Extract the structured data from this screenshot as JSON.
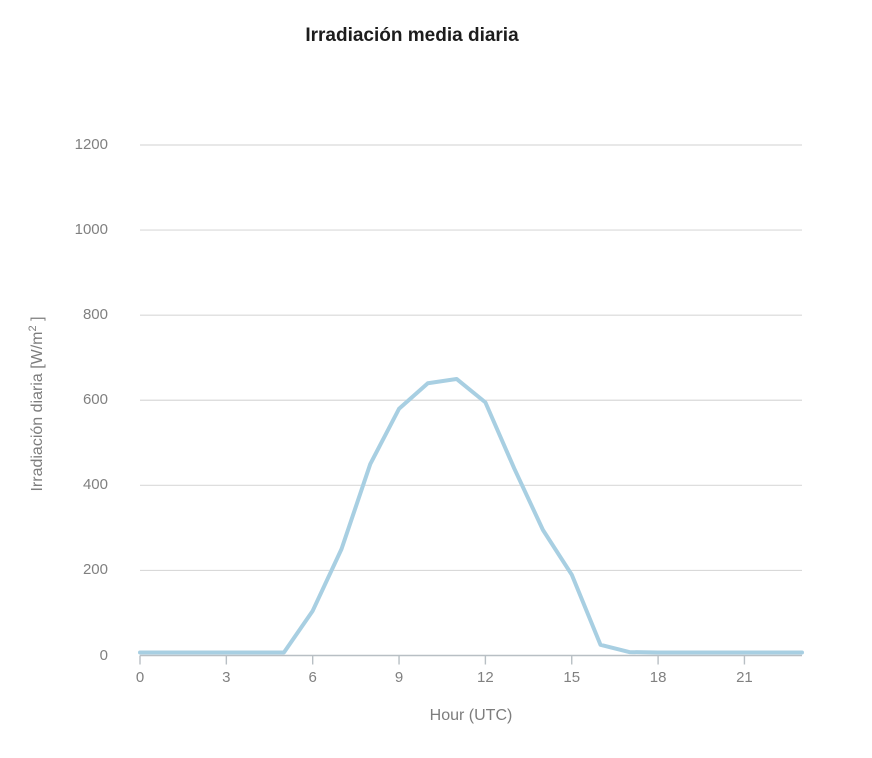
{
  "chart_data": {
    "type": "line",
    "title": "Irradiación media diaria",
    "xlabel": "Hour (UTC)",
    "ylabel": "Irradiación diaria [W/m ² ]",
    "ylabel_parts": {
      "prefix": "Irradiación diaria [W/m",
      "sup": "2",
      "suffix": " ]"
    },
    "x": [
      0,
      1,
      2,
      3,
      4,
      5,
      6,
      7,
      8,
      9,
      10,
      11,
      12,
      13,
      14,
      15,
      16,
      17,
      18,
      19,
      20,
      21,
      22,
      23
    ],
    "values": [
      7,
      7,
      7,
      7,
      7,
      7,
      105,
      250,
      450,
      580,
      640,
      650,
      595,
      440,
      295,
      190,
      25,
      8,
      7,
      7,
      7,
      7,
      7,
      7
    ],
    "xlim": [
      0,
      23
    ],
    "ylim": [
      0,
      1200
    ],
    "xticks": [
      0,
      3,
      6,
      9,
      12,
      15,
      18,
      21
    ],
    "yticks": [
      0,
      200,
      400,
      600,
      800,
      1000,
      1200
    ],
    "grid": "horizontal",
    "legend": "none",
    "colors": {
      "line": "#a8cfe2",
      "grid": "#d9d9d9",
      "axis": "#b8bfc4",
      "tick_label": "#808080",
      "axis_title": "#7d7d7d",
      "title": "#1d1d1d"
    }
  }
}
